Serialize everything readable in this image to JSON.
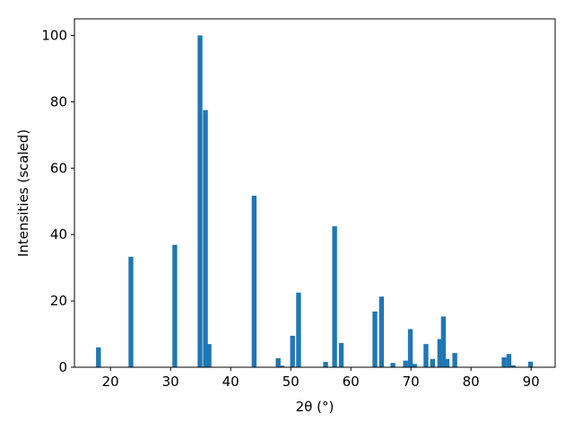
{
  "chart_data": {
    "type": "bar",
    "x": [
      18.0,
      23.4,
      30.7,
      34.9,
      35.8,
      36.4,
      43.9,
      47.9,
      48.5,
      50.3,
      51.3,
      55.8,
      57.3,
      58.4,
      64.0,
      65.1,
      67.0,
      69.1,
      69.9,
      70.6,
      72.5,
      73.6,
      74.8,
      75.4,
      76.0,
      77.3,
      85.5,
      86.3,
      87.0,
      89.9
    ],
    "values": [
      6.0,
      33.3,
      36.9,
      100,
      77.5,
      7.0,
      51.7,
      2.7,
      0.5,
      9.5,
      22.5,
      1.6,
      42.5,
      7.3,
      16.8,
      21.3,
      1.3,
      2.0,
      11.5,
      1.0,
      7.0,
      2.5,
      8.5,
      15.3,
      2.5,
      4.3,
      3.0,
      4.0,
      0.6,
      1.7
    ],
    "color": "#1f77b4",
    "xlabel": "2θ (°)",
    "ylabel": "Intensities (scaled)",
    "xlim": [
      14,
      94
    ],
    "ylim": [
      0,
      105
    ],
    "xticks": [
      20,
      30,
      40,
      50,
      60,
      70,
      80,
      90
    ],
    "yticks": [
      0,
      20,
      40,
      60,
      80,
      100
    ]
  }
}
